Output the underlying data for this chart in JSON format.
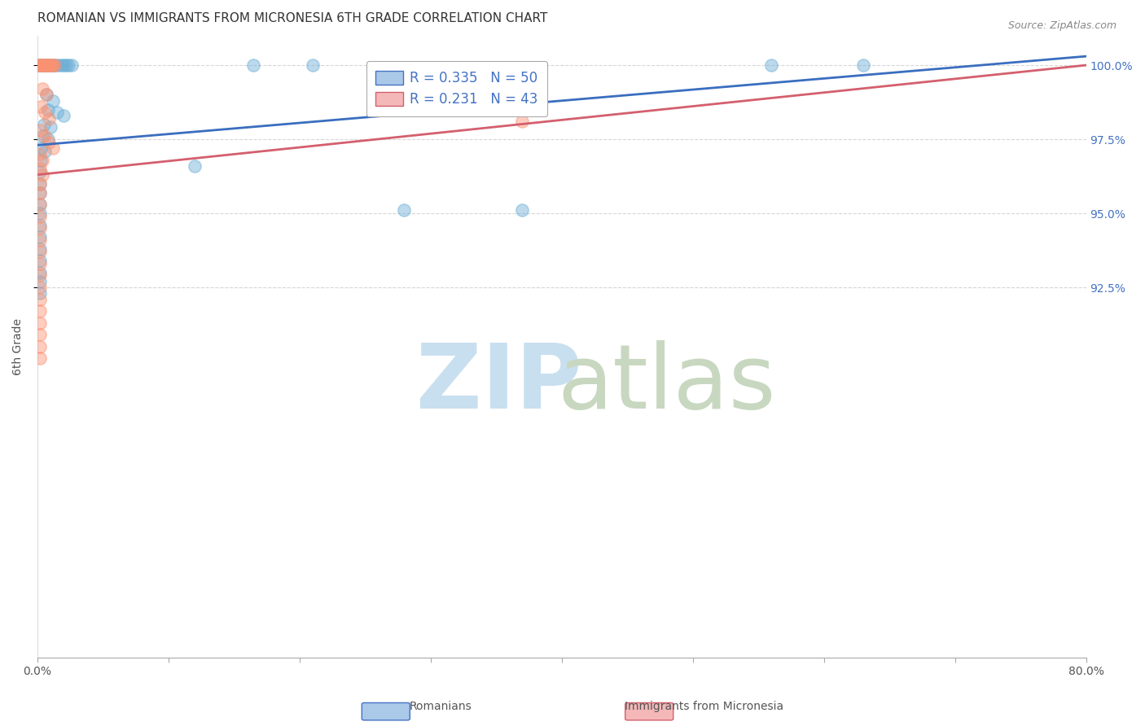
{
  "title": "ROMANIAN VS IMMIGRANTS FROM MICRONESIA 6TH GRADE CORRELATION CHART",
  "source": "Source: ZipAtlas.com",
  "ylabel": "6th Grade",
  "legend_blue_label": "R = 0.335   N = 50",
  "legend_pink_label": "R = 0.231   N = 43",
  "blue_scatter": [
    [
      0.001,
      1.0
    ],
    [
      0.002,
      1.0
    ],
    [
      0.003,
      1.0
    ],
    [
      0.004,
      1.0
    ],
    [
      0.005,
      1.0
    ],
    [
      0.006,
      1.0
    ],
    [
      0.007,
      1.0
    ],
    [
      0.008,
      1.0
    ],
    [
      0.009,
      1.0
    ],
    [
      0.01,
      1.0
    ],
    [
      0.011,
      1.0
    ],
    [
      0.012,
      1.0
    ],
    [
      0.014,
      1.0
    ],
    [
      0.016,
      1.0
    ],
    [
      0.018,
      1.0
    ],
    [
      0.02,
      1.0
    ],
    [
      0.022,
      1.0
    ],
    [
      0.024,
      1.0
    ],
    [
      0.026,
      1.0
    ],
    [
      0.165,
      1.0
    ],
    [
      0.21,
      1.0
    ],
    [
      0.56,
      1.0
    ],
    [
      0.63,
      1.0
    ],
    [
      0.007,
      0.99
    ],
    [
      0.012,
      0.988
    ],
    [
      0.008,
      0.985
    ],
    [
      0.015,
      0.984
    ],
    [
      0.02,
      0.983
    ],
    [
      0.005,
      0.98
    ],
    [
      0.01,
      0.979
    ],
    [
      0.004,
      0.976
    ],
    [
      0.008,
      0.975
    ],
    [
      0.003,
      0.972
    ],
    [
      0.006,
      0.971
    ],
    [
      0.003,
      0.968
    ],
    [
      0.002,
      0.964
    ],
    [
      0.002,
      0.96
    ],
    [
      0.002,
      0.957
    ],
    [
      0.002,
      0.953
    ],
    [
      0.002,
      0.95
    ],
    [
      0.12,
      0.966
    ],
    [
      0.28,
      0.951
    ],
    [
      0.002,
      0.946
    ],
    [
      0.002,
      0.942
    ],
    [
      0.002,
      0.938
    ],
    [
      0.002,
      0.934
    ],
    [
      0.002,
      0.93
    ],
    [
      0.002,
      0.927
    ],
    [
      0.002,
      0.923
    ],
    [
      0.37,
      0.951
    ]
  ],
  "pink_scatter": [
    [
      0.001,
      1.0
    ],
    [
      0.002,
      1.0
    ],
    [
      0.003,
      1.0
    ],
    [
      0.004,
      1.0
    ],
    [
      0.005,
      1.0
    ],
    [
      0.006,
      1.0
    ],
    [
      0.007,
      1.0
    ],
    [
      0.008,
      1.0
    ],
    [
      0.009,
      1.0
    ],
    [
      0.01,
      1.0
    ],
    [
      0.011,
      1.0
    ],
    [
      0.012,
      1.0
    ],
    [
      0.013,
      1.0
    ],
    [
      0.004,
      0.992
    ],
    [
      0.007,
      0.99
    ],
    [
      0.003,
      0.986
    ],
    [
      0.006,
      0.984
    ],
    [
      0.009,
      0.982
    ],
    [
      0.003,
      0.978
    ],
    [
      0.006,
      0.976
    ],
    [
      0.009,
      0.974
    ],
    [
      0.012,
      0.972
    ],
    [
      0.002,
      0.97
    ],
    [
      0.004,
      0.968
    ],
    [
      0.002,
      0.965
    ],
    [
      0.004,
      0.963
    ],
    [
      0.002,
      0.96
    ],
    [
      0.002,
      0.957
    ],
    [
      0.002,
      0.953
    ],
    [
      0.002,
      0.949
    ],
    [
      0.37,
      0.981
    ],
    [
      0.002,
      0.945
    ],
    [
      0.002,
      0.941
    ],
    [
      0.002,
      0.937
    ],
    [
      0.002,
      0.933
    ],
    [
      0.002,
      0.929
    ],
    [
      0.002,
      0.925
    ],
    [
      0.002,
      0.921
    ],
    [
      0.002,
      0.917
    ],
    [
      0.002,
      0.913
    ],
    [
      0.002,
      0.909
    ],
    [
      0.002,
      0.905
    ],
    [
      0.002,
      0.901
    ]
  ],
  "blue_line_x": [
    0.0,
    0.8
  ],
  "blue_line_y": [
    0.973,
    1.003
  ],
  "pink_line_x": [
    0.0,
    0.8
  ],
  "pink_line_y": [
    0.963,
    1.0
  ],
  "xlim": [
    0.0,
    0.8
  ],
  "ylim": [
    0.8,
    1.01
  ],
  "yticks": [
    1.0,
    0.975,
    0.95,
    0.925
  ],
  "ytick_labels": [
    "100.0%",
    "97.5%",
    "95.0%",
    "92.5%"
  ],
  "xticks": [
    0.0,
    0.1,
    0.2,
    0.3,
    0.4,
    0.5,
    0.6,
    0.7,
    0.8
  ],
  "xtick_labels": [
    "0.0%",
    "",
    "",
    "",
    "",
    "",
    "",
    "",
    "80.0%"
  ],
  "bg_color": "#ffffff",
  "blue_color": "#6baed6",
  "pink_color": "#fc9272",
  "blue_line_color": "#3a6ebf",
  "pink_line_color": "#d45f6e",
  "scatter_size": 120,
  "scatter_alpha": 0.45,
  "line_width": 2.0,
  "grid_color": "#cccccc",
  "grid_style": "--",
  "grid_alpha": 0.8,
  "title_fontsize": 11,
  "tick_fontsize": 10,
  "right_tick_color": "#4472c4",
  "source_color": "#888888"
}
